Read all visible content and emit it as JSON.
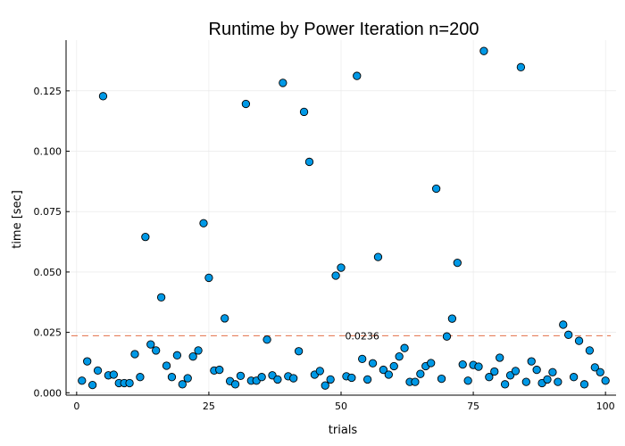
{
  "chart_data": {
    "type": "scatter",
    "title": "Runtime by Power Iteration  n=200",
    "xlabel": "trials",
    "ylabel": "time [sec]",
    "xlim": [
      -2,
      102
    ],
    "ylim": [
      -0.001,
      0.146
    ],
    "xticks": [
      0,
      25,
      50,
      75,
      100
    ],
    "yticks": [
      0.0,
      0.025,
      0.05,
      0.075,
      0.1,
      0.125
    ],
    "xtick_labels": [
      "0",
      "25",
      "50",
      "75",
      "100"
    ],
    "ytick_labels": [
      "0.000",
      "0.025",
      "0.050",
      "0.075",
      "0.100",
      "0.125"
    ],
    "grid": true,
    "legend": "none",
    "marker_color": "#0099e6",
    "marker_edge": "#000000",
    "reference_line": {
      "y": 0.0236,
      "label": "0.0236",
      "label_x": 54,
      "color": "#e26f46",
      "style": "dashed"
    },
    "x": [
      1,
      2,
      3,
      4,
      5,
      6,
      7,
      8,
      9,
      10,
      11,
      12,
      13,
      14,
      15,
      16,
      17,
      18,
      19,
      20,
      21,
      22,
      23,
      24,
      25,
      26,
      27,
      28,
      29,
      30,
      31,
      32,
      33,
      34,
      35,
      36,
      37,
      38,
      39,
      40,
      41,
      42,
      43,
      44,
      45,
      46,
      47,
      48,
      49,
      50,
      51,
      52,
      53,
      54,
      55,
      56,
      57,
      58,
      59,
      60,
      61,
      62,
      63,
      64,
      65,
      66,
      67,
      68,
      69,
      70,
      71,
      72,
      73,
      74,
      75,
      76,
      77,
      78,
      79,
      80,
      81,
      82,
      83,
      84,
      85,
      86,
      87,
      88,
      89,
      90,
      91,
      92,
      93,
      94,
      95,
      96,
      97,
      98,
      99,
      100
    ],
    "y": [
      0.005,
      0.013,
      0.0032,
      0.0092,
      0.1228,
      0.0072,
      0.0075,
      0.004,
      0.004,
      0.004,
      0.016,
      0.0065,
      0.0645,
      0.02,
      0.0175,
      0.0395,
      0.0112,
      0.0065,
      0.0155,
      0.0035,
      0.006,
      0.015,
      0.0175,
      0.0702,
      0.0476,
      0.0092,
      0.0095,
      0.0308,
      0.0048,
      0.0035,
      0.007,
      0.1196,
      0.005,
      0.005,
      0.0065,
      0.022,
      0.0072,
      0.0055,
      0.1283,
      0.0068,
      0.006,
      0.0172,
      0.1163,
      0.0956,
      0.0075,
      0.009,
      0.003,
      0.0055,
      0.0485,
      0.0518,
      0.0068,
      0.0062,
      0.1312,
      0.014,
      0.0055,
      0.0122,
      0.0562,
      0.0095,
      0.0075,
      0.011,
      0.015,
      0.0185,
      0.0045,
      0.0045,
      0.0078,
      0.011,
      0.0123,
      0.0845,
      0.0058,
      0.0233,
      0.0307,
      0.0538,
      0.0117,
      0.005,
      0.0115,
      0.0108,
      0.1415,
      0.0065,
      0.0088,
      0.0145,
      0.0035,
      0.0072,
      0.009,
      0.1348,
      0.0045,
      0.013,
      0.0095,
      0.004,
      0.0055,
      0.0085,
      0.0045,
      0.0282,
      0.024,
      0.0065,
      0.0215,
      0.0035,
      0.0175,
      0.0105,
      0.0085,
      0.005
    ]
  }
}
